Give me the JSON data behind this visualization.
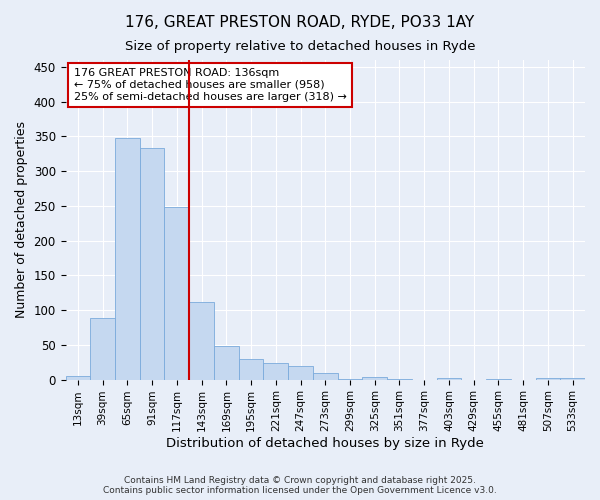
{
  "title1": "176, GREAT PRESTON ROAD, RYDE, PO33 1AY",
  "title2": "Size of property relative to detached houses in Ryde",
  "xlabel": "Distribution of detached houses by size in Ryde",
  "ylabel": "Number of detached properties",
  "categories": [
    "13sqm",
    "39sqm",
    "65sqm",
    "91sqm",
    "117sqm",
    "143sqm",
    "169sqm",
    "195sqm",
    "221sqm",
    "247sqm",
    "273sqm",
    "299sqm",
    "325sqm",
    "351sqm",
    "377sqm",
    "403sqm",
    "429sqm",
    "455sqm",
    "481sqm",
    "507sqm",
    "533sqm"
  ],
  "values": [
    5,
    88,
    348,
    334,
    248,
    112,
    49,
    30,
    24,
    20,
    9,
    1,
    4,
    1,
    0,
    3,
    0,
    1,
    0,
    2,
    2
  ],
  "bar_color": "#c5d8f0",
  "bar_edge_color": "#7aaadc",
  "vline_x_idx": 4.5,
  "vline_color": "#cc0000",
  "annotation_text": "176 GREAT PRESTON ROAD: 136sqm\n← 75% of detached houses are smaller (958)\n25% of semi-detached houses are larger (318) →",
  "annotation_box_facecolor": "white",
  "annotation_box_edgecolor": "#cc0000",
  "background_color": "#e8eef8",
  "grid_color": "white",
  "footer": "Contains HM Land Registry data © Crown copyright and database right 2025.\nContains public sector information licensed under the Open Government Licence v3.0.",
  "ylim": [
    0,
    460
  ],
  "yticks": [
    0,
    50,
    100,
    150,
    200,
    250,
    300,
    350,
    400,
    450
  ],
  "figsize": [
    6.0,
    5.0
  ],
  "dpi": 100
}
